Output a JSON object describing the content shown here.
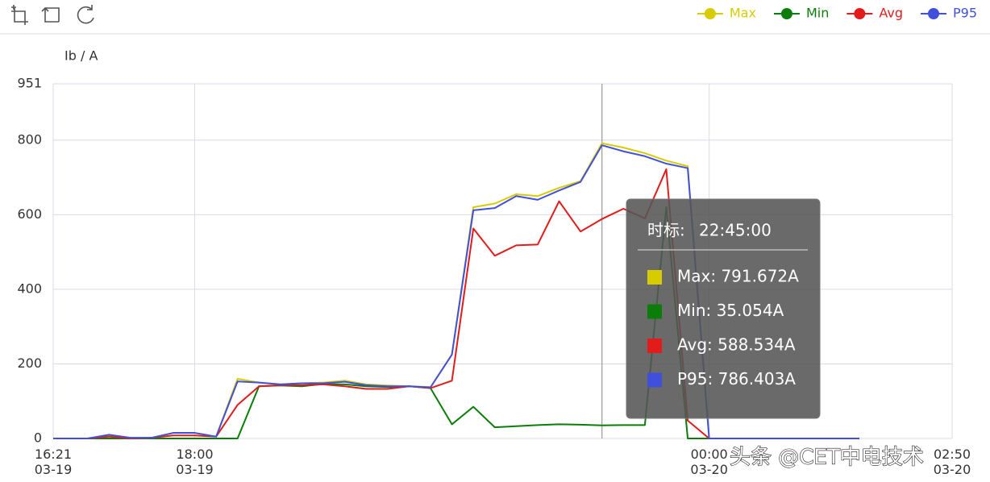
{
  "chart_data": {
    "type": "line",
    "y_label": "Ib / A",
    "x": [
      "03-19 16:21",
      "03-19 16:30",
      "03-19 16:45",
      "03-19 17:00",
      "03-19 17:15",
      "03-19 17:30",
      "03-19 17:45",
      "03-19 18:00",
      "03-19 18:15",
      "03-19 18:30",
      "03-19 18:45",
      "03-19 19:00",
      "03-19 19:15",
      "03-19 19:30",
      "03-19 19:45",
      "03-19 20:00",
      "03-19 20:15",
      "03-19 20:30",
      "03-19 20:45",
      "03-19 21:00",
      "03-19 21:15",
      "03-19 21:30",
      "03-19 21:45",
      "03-19 22:00",
      "03-19 22:15",
      "03-19 22:30",
      "03-19 22:45",
      "03-19 23:00",
      "03-19 23:15",
      "03-19 23:30",
      "03-19 23:45",
      "03-20 00:00",
      "03-20 00:15",
      "03-20 00:30",
      "03-20 00:45",
      "03-20 01:00",
      "03-20 01:15",
      "03-20 01:30",
      "03-20 01:45"
    ],
    "series": [
      {
        "name": "Max",
        "color": "#d6cc00",
        "values": [
          0,
          0,
          0,
          8,
          2,
          2,
          15,
          15,
          5,
          160,
          150,
          145,
          148,
          150,
          155,
          145,
          142,
          140,
          138,
          225,
          620,
          630,
          655,
          650,
          672,
          690,
          791.672,
          780,
          765,
          745,
          730,
          0,
          0,
          0,
          0,
          0,
          0,
          0,
          0
        ]
      },
      {
        "name": "Min",
        "color": "#0a7d0a",
        "values": [
          0,
          0,
          0,
          0,
          0,
          0,
          0,
          0,
          0,
          0,
          140,
          142,
          140,
          146,
          145,
          140,
          138,
          140,
          135,
          38,
          85,
          30,
          33,
          36,
          38,
          37,
          35.054,
          36,
          36,
          620,
          0,
          0,
          0,
          0,
          0,
          0,
          0,
          0,
          0
        ]
      },
      {
        "name": "Avg",
        "color": "#e21b1b",
        "values": [
          0,
          0,
          0,
          5,
          0,
          2,
          8,
          8,
          5,
          90,
          140,
          143,
          143,
          145,
          140,
          133,
          133,
          140,
          135,
          155,
          563,
          490,
          518,
          520,
          636,
          555,
          588.534,
          616,
          590,
          722,
          48,
          0,
          0,
          0,
          0,
          0,
          0,
          0,
          0
        ]
      },
      {
        "name": "P95",
        "color": "#4150dc",
        "values": [
          0,
          0,
          0,
          10,
          2,
          2,
          15,
          15,
          5,
          153,
          150,
          145,
          148,
          148,
          152,
          143,
          140,
          140,
          137,
          225,
          612,
          618,
          650,
          640,
          665,
          688,
          786.403,
          770,
          757,
          737,
          725,
          0,
          0,
          0,
          0,
          0,
          0,
          0,
          0
        ]
      }
    ],
    "xlim": [
      "03-19 16:21",
      "03-20 02:50"
    ],
    "xticks": [
      {
        "value": "03-19 16:21",
        "label": "16:21\n03-19"
      },
      {
        "value": "03-19 18:00",
        "label": "18:00\n03-19"
      },
      {
        "value": "03-20 00:00",
        "label": "00:00\n03-20"
      },
      {
        "value": "03-20 02:50",
        "label": "02:50\n03-20"
      }
    ],
    "ylim": [
      0,
      951
    ],
    "yticks": [
      0,
      200,
      400,
      600,
      800,
      951
    ],
    "grid": true,
    "legend": "top-right",
    "tooltip": {
      "title": "时标:",
      "time": "22:45:00",
      "entries": [
        "Max: 791.672A",
        "Min: 35.054A",
        "Avg: 588.534A",
        "P95: 786.403A"
      ]
    },
    "watermark": "头条 @CET中电技术"
  }
}
